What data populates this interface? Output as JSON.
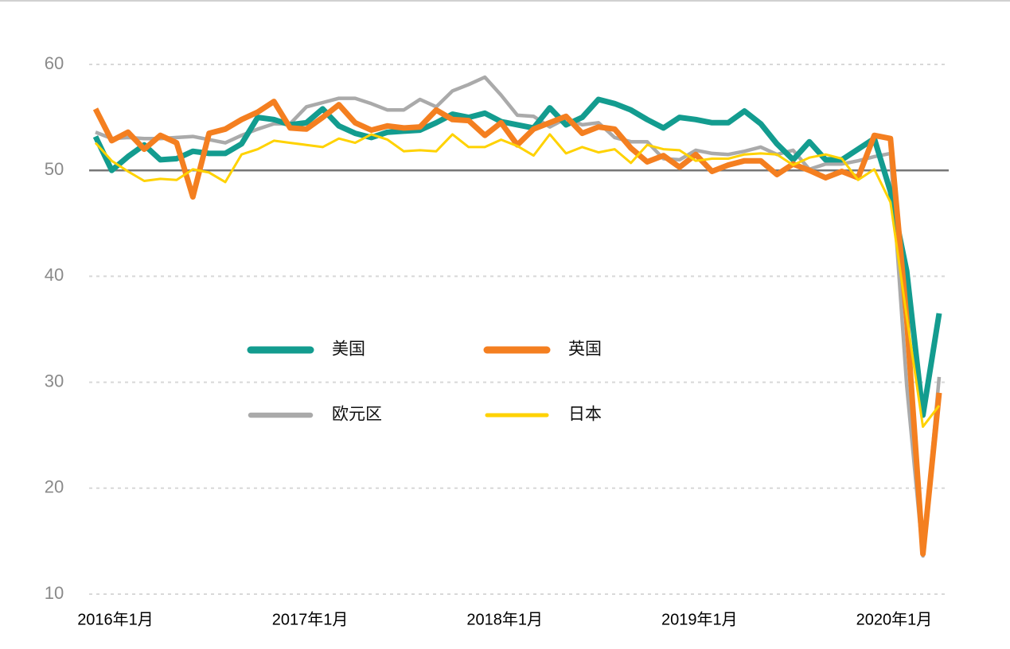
{
  "chart_data": {
    "type": "line",
    "categories": [
      "2016年1月",
      null,
      null,
      null,
      null,
      null,
      null,
      null,
      null,
      null,
      null,
      null,
      "2017年1月",
      null,
      null,
      null,
      null,
      null,
      null,
      null,
      null,
      null,
      null,
      null,
      "2018年1月",
      null,
      null,
      null,
      null,
      null,
      null,
      null,
      null,
      null,
      null,
      null,
      "2019年1月",
      null,
      null,
      null,
      null,
      null,
      null,
      null,
      null,
      null,
      null,
      null,
      "2020年1月",
      null,
      null,
      null,
      null
    ],
    "series": [
      {
        "name": "美国",
        "color": "#139c8f",
        "values": [
          53.2,
          50.0,
          51.3,
          52.4,
          51.0,
          51.1,
          51.8,
          51.6,
          51.6,
          52.5,
          55.0,
          54.8,
          54.3,
          54.5,
          55.8,
          54.2,
          53.5,
          53.1,
          53.6,
          53.7,
          53.8,
          54.5,
          55.3,
          55.0,
          55.4,
          54.6,
          54.3,
          54.0,
          55.9,
          54.3,
          55.0,
          56.7,
          56.3,
          55.7,
          54.8,
          54.0,
          55.0,
          54.8,
          54.5,
          54.5,
          55.6,
          54.4,
          52.5,
          51.0,
          52.7,
          51.0,
          51.0,
          52.0,
          53.0,
          48.0,
          40.5,
          26.9,
          36.5
        ]
      },
      {
        "name": "英国",
        "color": "#f47f20",
        "values": [
          55.8,
          52.8,
          53.6,
          52.0,
          53.3,
          52.6,
          47.5,
          53.5,
          53.9,
          54.8,
          55.5,
          56.5,
          54.0,
          53.9,
          55.0,
          56.2,
          54.5,
          53.8,
          54.2,
          54.0,
          54.1,
          55.7,
          54.8,
          54.7,
          53.3,
          54.5,
          52.4,
          53.9,
          54.5,
          55.1,
          53.5,
          54.1,
          53.9,
          52.1,
          50.8,
          51.4,
          50.3,
          51.5,
          49.9,
          50.5,
          50.9,
          50.9,
          49.6,
          50.6,
          50.0,
          49.3,
          49.9,
          49.3,
          53.3,
          53.0,
          36.0,
          13.8,
          29.0
        ]
      },
      {
        "name": "欧元区",
        "color": "#aaaaaa",
        "values": [
          53.6,
          53.0,
          53.1,
          53.0,
          53.0,
          53.1,
          53.2,
          52.9,
          52.6,
          53.3,
          53.9,
          54.4,
          54.4,
          56.0,
          56.4,
          56.8,
          56.8,
          56.3,
          55.7,
          55.7,
          56.7,
          56.0,
          57.5,
          58.1,
          58.8,
          57.1,
          55.2,
          55.1,
          54.1,
          54.9,
          54.3,
          54.5,
          53.1,
          52.7,
          52.7,
          51.1,
          51.0,
          51.9,
          51.6,
          51.5,
          51.8,
          52.2,
          51.5,
          51.9,
          50.1,
          50.6,
          50.6,
          50.9,
          51.3,
          51.6,
          29.7,
          13.6,
          30.5
        ]
      },
      {
        "name": "日本",
        "color": "#ffd200",
        "values": [
          52.6,
          50.9,
          49.9,
          49.0,
          49.2,
          49.1,
          50.1,
          49.8,
          48.9,
          51.5,
          52.0,
          52.8,
          52.6,
          52.4,
          52.2,
          53.0,
          52.6,
          53.4,
          52.9,
          51.8,
          51.9,
          51.8,
          53.4,
          52.2,
          52.2,
          52.9,
          52.3,
          51.4,
          53.4,
          51.6,
          52.2,
          51.7,
          52.0,
          50.7,
          52.4,
          52.0,
          51.9,
          50.9,
          51.1,
          51.1,
          51.5,
          51.6,
          51.5,
          50.5,
          51.2,
          51.5,
          51.1,
          49.1,
          50.1,
          47.0,
          36.2,
          25.8,
          27.8
        ]
      }
    ],
    "ylim": [
      10,
      60
    ],
    "yticks": [
      10,
      20,
      30,
      40,
      50,
      60
    ],
    "grid": true,
    "reference_line": 50
  }
}
